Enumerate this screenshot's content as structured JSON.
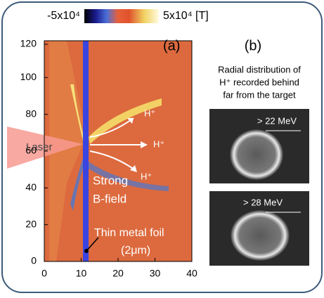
{
  "colorbar": {
    "min_label": "-5x10⁴",
    "max_label": "5x10⁴ [T]"
  },
  "panel_a": {
    "label": "(a)",
    "y_ticks": [
      "0",
      "20",
      "40",
      "60",
      "80",
      "100",
      "120"
    ],
    "x_ticks": [
      "0",
      "10",
      "20",
      "30",
      "40"
    ],
    "annotations": {
      "laser": "Laser",
      "proton_up": "H⁺",
      "proton_mid": "H⁺",
      "proton_down": "H⁺",
      "field_1": "Strong",
      "field_2": "B-field",
      "foil_1": "Thin metal foil",
      "foil_2": "(2μm)"
    }
  },
  "panel_b": {
    "label": "(b)",
    "caption": [
      "Radial distribution of",
      "H⁺ recorded  behind",
      "far from the target"
    ],
    "images": [
      {
        "label": "> 22 MeV"
      },
      {
        "label": "> 28 MeV"
      }
    ]
  }
}
